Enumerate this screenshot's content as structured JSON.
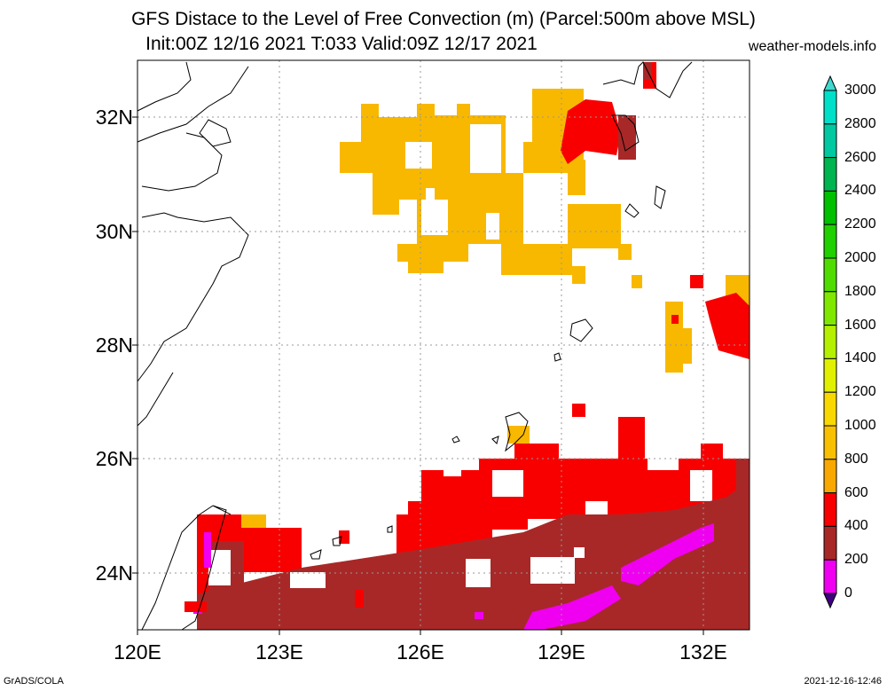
{
  "title_line1": "GFS Distace to the Level of Free Convection (m) (Parcel:500m above MSL)",
  "title_line2": "Init:00Z 12/16 2021 T:033 Valid:09Z 12/17 2021",
  "site": "weather-models.info",
  "footer_left": "GrADS/COLA",
  "footer_right": "2021-12-16-12:46",
  "y_ticks": [
    "32N",
    "30N",
    "28N",
    "26N",
    "24N"
  ],
  "x_ticks": [
    "120E",
    "123E",
    "126E",
    "129E",
    "132E"
  ],
  "colorbar": {
    "labels": [
      "3000",
      "2800",
      "2600",
      "2400",
      "2200",
      "2000",
      "1800",
      "1600",
      "1400",
      "1200",
      "1000",
      "800",
      "600",
      "400",
      "200",
      "0"
    ],
    "colors": [
      "#00e0c8",
      "#00c8a0",
      "#00b450",
      "#00c000",
      "#20d000",
      "#50dc00",
      "#80e800",
      "#b4f000",
      "#e0f000",
      "#f8d800",
      "#f8c000",
      "#f8a800",
      "#f80000",
      "#a82828",
      "#f000f0",
      "#5000a0"
    ],
    "top_arrow_color": "#40d8d0",
    "bottom_arrow_color": "#400080"
  }
}
